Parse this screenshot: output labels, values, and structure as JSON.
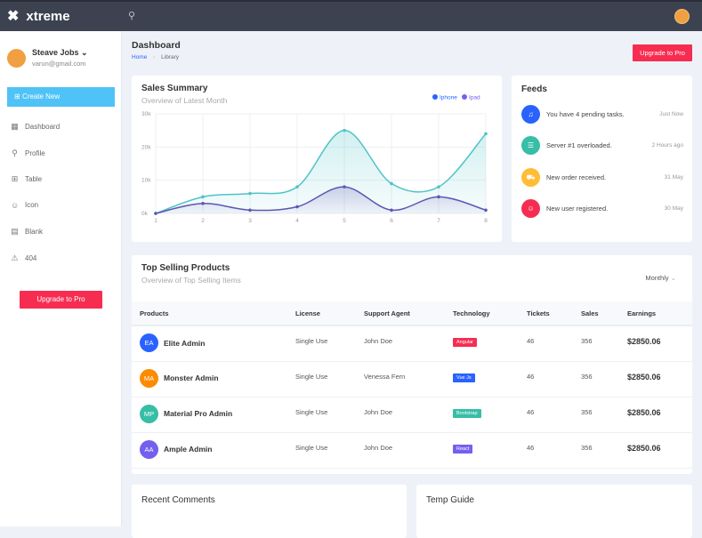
{
  "topbar": {
    "brand": "xtreme",
    "search_icon": "search-icon"
  },
  "sidebar": {
    "user_name": "Steave Jobs",
    "user_email": "varun@gmail.com",
    "create_label": "Create New",
    "items": [
      {
        "label": "Dashboard",
        "icon": "▦"
      },
      {
        "label": "Profile",
        "icon": "⚲"
      },
      {
        "label": "Table",
        "icon": "⊞"
      },
      {
        "label": "Icon",
        "icon": "☺"
      },
      {
        "label": "Blank",
        "icon": "▤"
      },
      {
        "label": "404",
        "icon": "⚠"
      }
    ],
    "upgrade_label": "Upgrade to Pro"
  },
  "header": {
    "title": "Dashboard",
    "breadcrumb": [
      "Home",
      "Library"
    ],
    "upgrade_label": "Upgrade to Pro"
  },
  "sales": {
    "title": "Sales Summary",
    "subtitle": "Overview of Latest Month"
  },
  "chart_data": {
    "type": "area",
    "x": [
      1,
      2,
      3,
      4,
      5,
      6,
      7,
      8
    ],
    "ylim": [
      0,
      30000
    ],
    "yticks": [
      "0k",
      "10k",
      "20k",
      "30k"
    ],
    "grid": true,
    "legend": "top-right",
    "series": [
      {
        "name": "Iphone",
        "color": "#4fc3c7",
        "legend_color": "#2962ff",
        "values": [
          0,
          5000,
          6000,
          8000,
          25000,
          9000,
          8000,
          24000
        ]
      },
      {
        "name": "Ipad",
        "color": "#5e56b4",
        "legend_color": "#7460ee",
        "values": [
          0,
          3000,
          1000,
          2000,
          8000,
          1000,
          5000,
          1000
        ]
      }
    ]
  },
  "feeds": {
    "title": "Feeds",
    "items": [
      {
        "text": "You have 4 pending tasks.",
        "time": "Just Now",
        "color": "#2962ff",
        "icon": "bell-icon",
        "glyph": "♫"
      },
      {
        "text": "Server #1 overloaded.",
        "time": "2 Hours ago",
        "color": "#36bea6",
        "icon": "server-icon",
        "glyph": "☰"
      },
      {
        "text": "New order received.",
        "time": "31 May",
        "color": "#ffbc34",
        "icon": "cart-icon",
        "glyph": "⛟"
      },
      {
        "text": "New user registered.",
        "time": "30 May",
        "color": "#f62d51",
        "icon": "user-icon",
        "glyph": "☺"
      }
    ]
  },
  "top_selling": {
    "title": "Top Selling Products",
    "subtitle": "Overview of Top Selling Items",
    "filter": "Monthly",
    "columns": [
      "Products",
      "License",
      "Support Agent",
      "Technology",
      "Tickets",
      "Sales",
      "Earnings"
    ],
    "rows": [
      {
        "initials": "EA",
        "color": "#2962ff",
        "name": "Elite Admin",
        "license": "Single Use",
        "agent": "John Doe",
        "tech": "Angular",
        "tech_color": "#f62d51",
        "tickets": "46",
        "sales": "356",
        "earnings": "$2850.06"
      },
      {
        "initials": "MA",
        "color": "#fb8c00",
        "name": "Monster Admin",
        "license": "Single Use",
        "agent": "Venessa Fern",
        "tech": "Vue Js",
        "tech_color": "#2962ff",
        "tickets": "46",
        "sales": "356",
        "earnings": "$2850.06"
      },
      {
        "initials": "MP",
        "color": "#36bea6",
        "name": "Material Pro Admin",
        "license": "Single Use",
        "agent": "John Doe",
        "tech": "Bootstrap",
        "tech_color": "#36bea6",
        "tickets": "46",
        "sales": "356",
        "earnings": "$2850.06"
      },
      {
        "initials": "AA",
        "color": "#7460ee",
        "name": "Ample Admin",
        "license": "Single Use",
        "agent": "John Doe",
        "tech": "React",
        "tech_color": "#7460ee",
        "tickets": "46",
        "sales": "356",
        "earnings": "$2850.06"
      }
    ]
  },
  "recent_comments": {
    "title": "Recent Comments"
  },
  "temp_guide": {
    "title": "Temp Guide"
  }
}
